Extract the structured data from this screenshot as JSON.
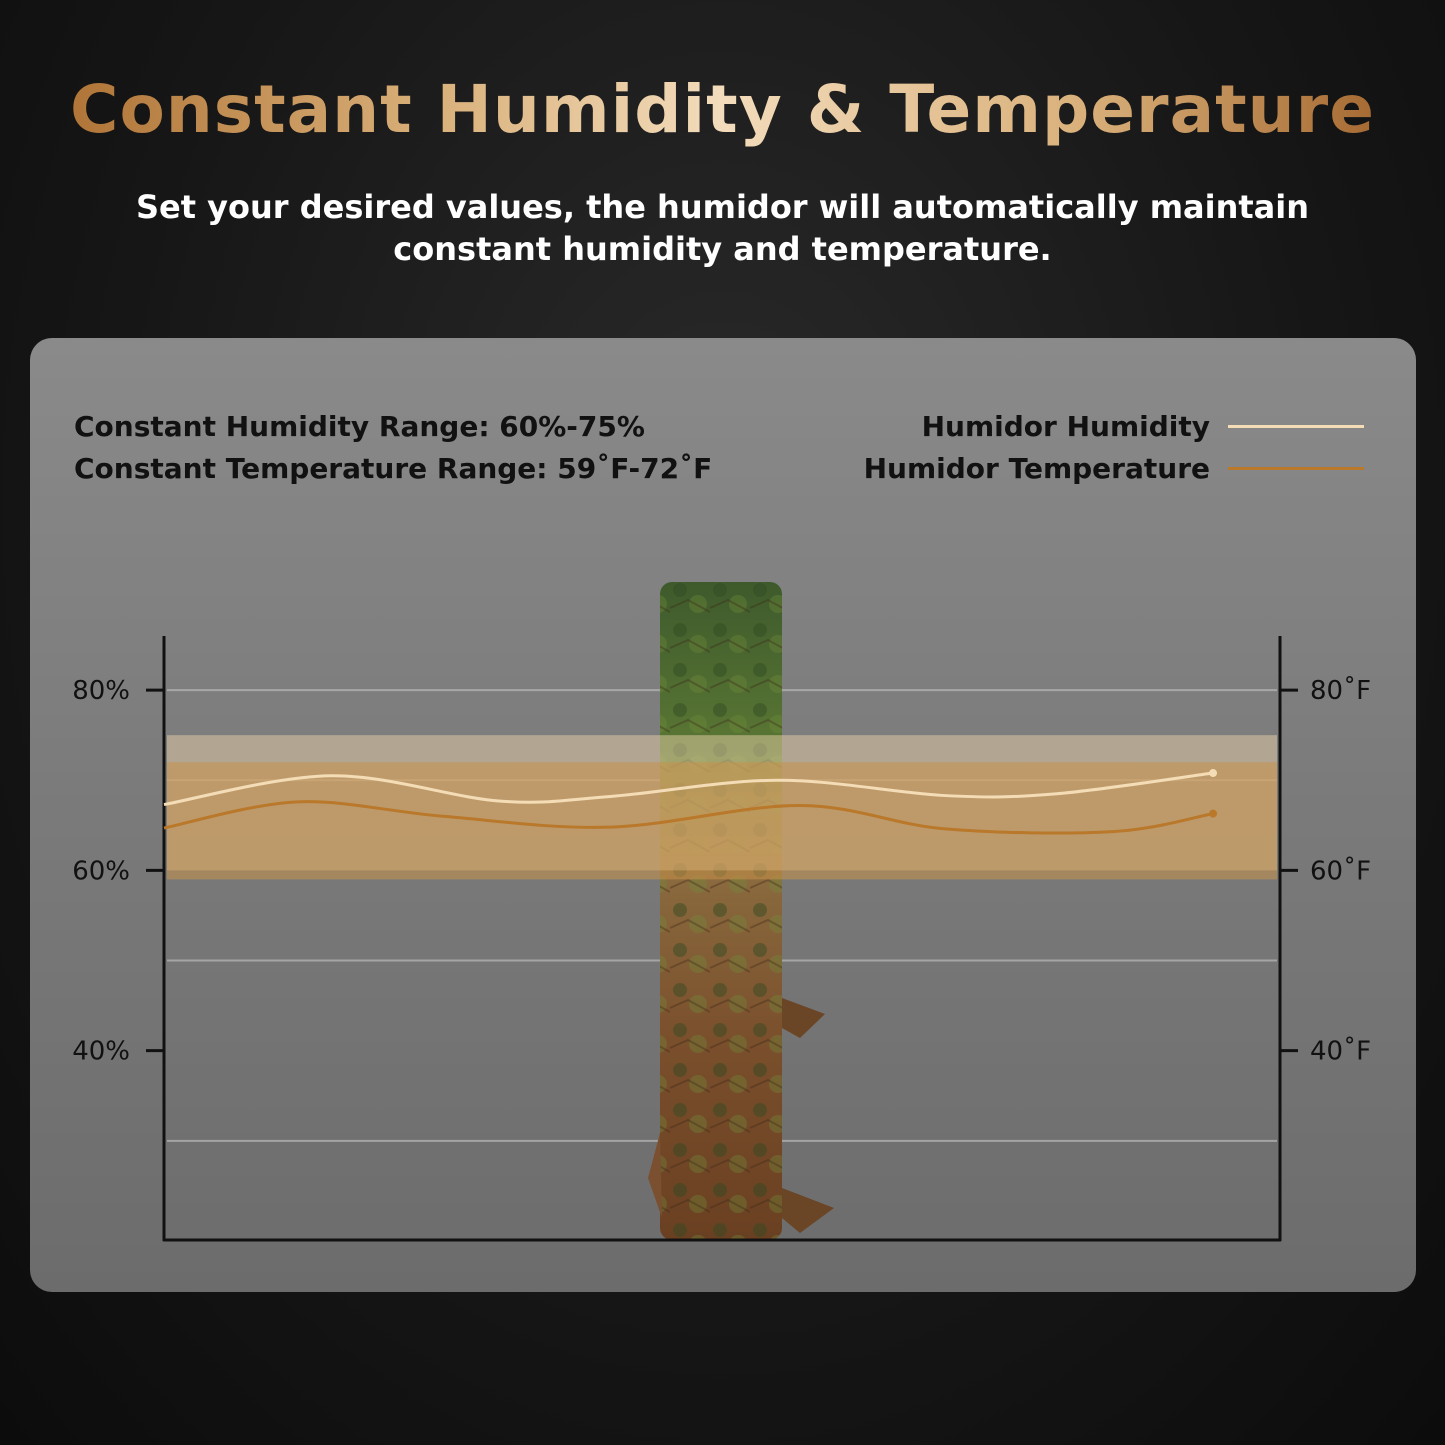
{
  "header": {
    "title": "Constant Humidity & Temperature",
    "subtitle_line1": "Set your desired values, the humidor will automatically maintain",
    "subtitle_line2": "constant humidity and temperature."
  },
  "panel": {
    "humidity_range_text": "Constant Humidity Range: 60%-75%",
    "temperature_range_text": "Constant Temperature Range: 59˚F-72˚F"
  },
  "colors": {
    "humidity_line": "#f3dcb6",
    "temperature_line": "#b9782a",
    "band_humidity": "#e8cfa8",
    "band_temperature": "#c8914a"
  },
  "chart_data": {
    "type": "line",
    "legend_placement": "top-right",
    "left_axis": {
      "ticks": [
        40,
        60,
        80
      ],
      "tick_labels": [
        "40%",
        "60%",
        "80%"
      ]
    },
    "right_axis": {
      "ticks": [
        40,
        60,
        80
      ],
      "tick_labels": [
        "40˚F",
        "60˚F",
        "80˚F"
      ]
    },
    "ylim": [
      19,
      86
    ],
    "xlim": [
      0,
      100
    ],
    "grid": true,
    "grid_values": [
      30,
      50,
      70,
      80
    ],
    "bands": [
      {
        "name": "humidity_range",
        "from": 60,
        "to": 75
      },
      {
        "name": "temperature_range",
        "from": 59,
        "to": 72
      }
    ],
    "series": [
      {
        "name": "Humidor Humidity",
        "x": [
          0,
          15,
          30,
          40,
          55,
          70,
          80,
          94
        ],
        "values": [
          67.3,
          70.5,
          67.7,
          68.2,
          70.0,
          68.3,
          68.5,
          70.8
        ]
      },
      {
        "name": "Humidor Temperature",
        "x": [
          0,
          12,
          25,
          40,
          57,
          70,
          85,
          94
        ],
        "values": [
          64.7,
          67.6,
          66.0,
          64.8,
          67.2,
          64.6,
          64.3,
          66.3
        ]
      }
    ]
  }
}
